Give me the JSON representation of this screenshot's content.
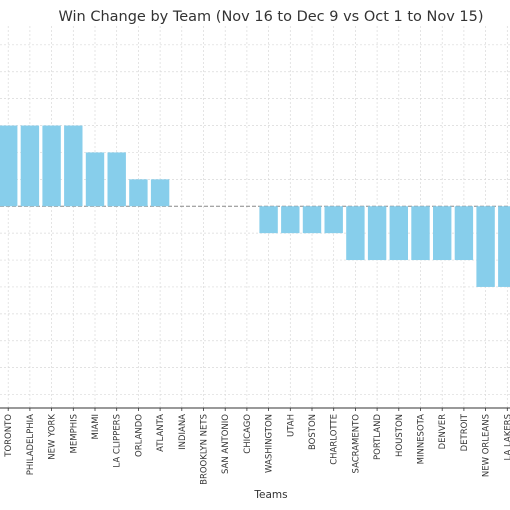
{
  "chart_data": {
    "type": "bar",
    "title": "Win Change by Team (Nov 16 to Dec 9 vs Oct 1 to Nov 15)",
    "xlabel": "Teams",
    "ylabel": "",
    "categories": [
      "TORONTO",
      "PHILADELPHIA",
      "NEW YORK",
      "MEMPHIS",
      "MIAMI",
      "LA CLIPPERS",
      "ORLANDO",
      "ATLANTA",
      "INDIANA",
      "BROOKLYN NETS",
      "SAN ANTONIO",
      "CHICAGO",
      "WASHINGTON",
      "UTAH",
      "BOSTON",
      "CHARLOTTE",
      "SACRAMENTO",
      "PORTLAND",
      "HOUSTON",
      "MINNESOTA",
      "DENVER",
      "DETROIT",
      "NEW ORLEANS",
      "LA LAKERS"
    ],
    "values": [
      3,
      3,
      3,
      3,
      2,
      2,
      1,
      1,
      0,
      0,
      0,
      0,
      -1,
      -1,
      -1,
      -1,
      -2,
      -2,
      -2,
      -2,
      -2,
      -2,
      -3,
      -3
    ],
    "ylim": [
      -7.5,
      6.7
    ],
    "grid": true,
    "zero_line": true,
    "bar_color": "#87CEEB",
    "grid_color": "#d9d9d9",
    "zero_line_color": "#888888"
  }
}
